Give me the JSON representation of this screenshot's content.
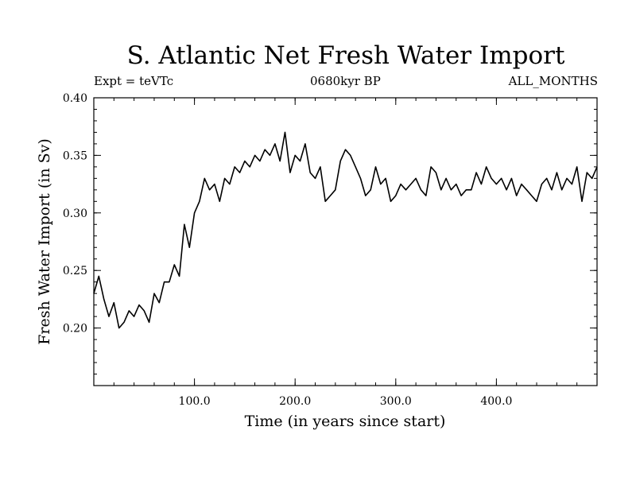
{
  "header": {
    "title": "S. Atlantic Net Fresh Water Import",
    "experiment": "Expt = teVTc",
    "period": "0680kyr BP",
    "months": "ALL_MONTHS"
  },
  "colors": {
    "line": "#000000",
    "background": "#ffffff",
    "axes": "#000000"
  },
  "chart_data": {
    "type": "line",
    "title": "S. Atlantic Net Fresh Water Import",
    "xlabel": "Time (in years since start)",
    "ylabel": "Fresh Water Import (in Sv)",
    "xlim": [
      0,
      500
    ],
    "ylim": [
      0.15,
      0.4
    ],
    "grid": false,
    "legend": "none",
    "x_ticks": [
      100,
      200,
      300,
      400
    ],
    "x_tick_labels": [
      "100.0",
      "200.0",
      "300.0",
      "400.0"
    ],
    "y_ticks": [
      0.2,
      0.25,
      0.3,
      0.35,
      0.4
    ],
    "y_tick_labels": [
      "0.20",
      "0.25",
      "0.30",
      "0.35",
      "0.40"
    ],
    "series": [
      {
        "x": [
          0,
          5,
          10,
          15,
          20,
          25,
          30,
          35,
          40,
          45,
          50,
          55,
          60,
          65,
          70,
          75,
          80,
          85,
          90,
          95,
          100,
          105,
          110,
          115,
          120,
          125,
          130,
          135,
          140,
          145,
          150,
          155,
          160,
          165,
          170,
          175,
          180,
          185,
          190,
          195,
          200,
          205,
          210,
          215,
          220,
          225,
          230,
          235,
          240,
          245,
          250,
          255,
          260,
          265,
          270,
          275,
          280,
          285,
          290,
          295,
          300,
          305,
          310,
          315,
          320,
          325,
          330,
          335,
          340,
          345,
          350,
          355,
          360,
          365,
          370,
          375,
          380,
          385,
          390,
          395,
          400,
          405,
          410,
          415,
          420,
          425,
          430,
          435,
          440,
          445,
          450,
          455,
          460,
          465,
          470,
          475,
          480,
          485,
          490,
          495,
          500
        ],
        "y": [
          0.23,
          0.245,
          0.225,
          0.21,
          0.222,
          0.2,
          0.205,
          0.215,
          0.21,
          0.22,
          0.215,
          0.205,
          0.23,
          0.222,
          0.24,
          0.24,
          0.255,
          0.245,
          0.29,
          0.27,
          0.3,
          0.31,
          0.33,
          0.32,
          0.325,
          0.31,
          0.33,
          0.325,
          0.34,
          0.335,
          0.345,
          0.34,
          0.35,
          0.345,
          0.355,
          0.35,
          0.36,
          0.345,
          0.37,
          0.335,
          0.35,
          0.345,
          0.36,
          0.335,
          0.33,
          0.34,
          0.31,
          0.315,
          0.32,
          0.345,
          0.355,
          0.35,
          0.34,
          0.33,
          0.315,
          0.32,
          0.34,
          0.325,
          0.33,
          0.31,
          0.315,
          0.325,
          0.32,
          0.325,
          0.33,
          0.32,
          0.315,
          0.34,
          0.335,
          0.32,
          0.33,
          0.32,
          0.325,
          0.315,
          0.32,
          0.32,
          0.335,
          0.325,
          0.34,
          0.33,
          0.325,
          0.33,
          0.32,
          0.33,
          0.315,
          0.325,
          0.32,
          0.315,
          0.31,
          0.325,
          0.33,
          0.32,
          0.335,
          0.32,
          0.33,
          0.325,
          0.34,
          0.31,
          0.335,
          0.33,
          0.34
        ]
      }
    ]
  }
}
